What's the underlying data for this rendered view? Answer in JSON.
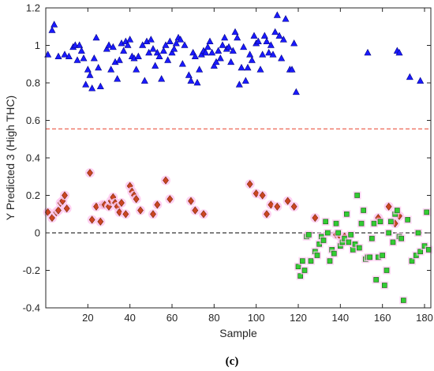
{
  "chart_data": {
    "type": "scatter",
    "panel_label": "(c)",
    "xlabel": "Sample",
    "ylabel": "Y Predicted 3 (High THC)",
    "xlim": [
      0,
      183
    ],
    "ylim": [
      -0.4,
      1.2
    ],
    "xticks": [
      20,
      40,
      60,
      80,
      100,
      120,
      140,
      160,
      180
    ],
    "yticks": [
      -0.4,
      -0.2,
      0,
      0.2,
      0.4,
      0.6,
      0.8,
      1,
      1.2
    ],
    "grid": false,
    "reference_lines": [
      {
        "y": 0.555,
        "color": "#e8402a",
        "style": "dashed"
      },
      {
        "y": 0,
        "color": "#000000",
        "style": "dashed"
      }
    ],
    "series": [
      {
        "marker": "triangle",
        "color": "#1a1aff",
        "edge": "#000080",
        "points": [
          [
            1,
            0.95
          ],
          [
            3,
            1.08
          ],
          [
            4,
            1.11
          ],
          [
            6,
            0.94
          ],
          [
            9,
            0.95
          ],
          [
            11,
            0.94
          ],
          [
            13,
            0.99
          ],
          [
            14,
            1.0
          ],
          [
            15,
            0.92
          ],
          [
            16,
            1.0
          ],
          [
            17,
            0.97
          ],
          [
            18,
            0.93
          ],
          [
            19,
            0.79
          ],
          [
            20,
            0.87
          ],
          [
            21,
            0.84
          ],
          [
            22,
            0.77
          ],
          [
            23,
            0.93
          ],
          [
            24,
            1.04
          ],
          [
            25,
            0.88
          ],
          [
            26,
            0.78
          ],
          [
            29,
            0.98
          ],
          [
            30,
            1.0
          ],
          [
            31,
            0.87
          ],
          [
            32,
            0.99
          ],
          [
            33,
            0.91
          ],
          [
            34,
            0.82
          ],
          [
            35,
            0.92
          ],
          [
            36,
            1.01
          ],
          [
            37,
            0.97
          ],
          [
            38,
            1.02
          ],
          [
            39,
            1.0
          ],
          [
            40,
            1.03
          ],
          [
            41,
            0.94
          ],
          [
            42,
            0.93
          ],
          [
            43,
            0.87
          ],
          [
            44,
            0.94
          ],
          [
            46,
            1.0
          ],
          [
            47,
            0.81
          ],
          [
            48,
            1.02
          ],
          [
            49,
            0.96
          ],
          [
            50,
            1.03
          ],
          [
            51,
            0.98
          ],
          [
            52,
            0.89
          ],
          [
            53,
            0.96
          ],
          [
            54,
            0.94
          ],
          [
            55,
            0.82
          ],
          [
            56,
            0.97
          ],
          [
            57,
            1.0
          ],
          [
            58,
            0.92
          ],
          [
            59,
            1.02
          ],
          [
            60,
            0.96
          ],
          [
            61,
            0.98
          ],
          [
            62,
            1.01
          ],
          [
            63,
            1.04
          ],
          [
            64,
            1.03
          ],
          [
            65,
            0.9
          ],
          [
            66,
            1.0
          ],
          [
            68,
            0.84
          ],
          [
            69,
            0.81
          ],
          [
            70,
            0.96
          ],
          [
            71,
            0.94
          ],
          [
            72,
            0.8
          ],
          [
            73,
            0.87
          ],
          [
            74,
            0.95
          ],
          [
            75,
            0.97
          ],
          [
            76,
            0.96
          ],
          [
            77,
            0.99
          ],
          [
            78,
            1.02
          ],
          [
            79,
            0.96
          ],
          [
            80,
            0.89
          ],
          [
            81,
            0.91
          ],
          [
            82,
            0.97
          ],
          [
            83,
            0.93
          ],
          [
            84,
            1.0
          ],
          [
            85,
            1.04
          ],
          [
            86,
            0.98
          ],
          [
            87,
            0.99
          ],
          [
            88,
            0.91
          ],
          [
            89,
            0.97
          ],
          [
            90,
            1.07
          ],
          [
            91,
            1.04
          ],
          [
            92,
            0.79
          ],
          [
            93,
            0.88
          ],
          [
            94,
            0.99
          ],
          [
            95,
            0.81
          ],
          [
            96,
            0.88
          ],
          [
            97,
            0.95
          ],
          [
            98,
            0.92
          ],
          [
            99,
            1.05
          ],
          [
            100,
            1.01
          ],
          [
            101,
            1.02
          ],
          [
            102,
            0.87
          ],
          [
            103,
            0.95
          ],
          [
            104,
            1.05
          ],
          [
            105,
            1.02
          ],
          [
            106,
            0.96
          ],
          [
            107,
            1.0
          ],
          [
            108,
            0.95
          ],
          [
            109,
            1.07
          ],
          [
            110,
            1.16
          ],
          [
            111,
            1.05
          ],
          [
            112,
            0.93
          ],
          [
            113,
            1.03
          ],
          [
            114,
            1.14
          ],
          [
            116,
            0.87
          ],
          [
            117,
            0.87
          ],
          [
            118,
            1.01
          ],
          [
            119,
            0.75
          ],
          [
            153,
            0.96
          ],
          [
            167,
            0.97
          ],
          [
            168,
            0.96
          ],
          [
            173,
            0.83
          ],
          [
            178,
            0.81
          ]
        ]
      },
      {
        "marker": "diamond",
        "color": "#cc4422",
        "edge": "#6b2a00",
        "halo": "#ffc8ef",
        "points": [
          [
            1,
            0.11
          ],
          [
            3,
            0.08
          ],
          [
            5,
            0.11
          ],
          [
            6,
            0.12
          ],
          [
            7,
            0.16
          ],
          [
            8,
            0.17
          ],
          [
            9,
            0.2
          ],
          [
            10,
            0.13
          ],
          [
            21,
            0.32
          ],
          [
            22,
            0.07
          ],
          [
            24,
            0.14
          ],
          [
            26,
            0.06
          ],
          [
            27,
            0.15
          ],
          [
            28,
            0.15
          ],
          [
            30,
            0.14
          ],
          [
            31,
            0.17
          ],
          [
            32,
            0.19
          ],
          [
            33,
            0.16
          ],
          [
            34,
            0.14
          ],
          [
            35,
            0.11
          ],
          [
            36,
            0.16
          ],
          [
            38,
            0.1
          ],
          [
            40,
            0.25
          ],
          [
            41,
            0.22
          ],
          [
            42,
            0.2
          ],
          [
            43,
            0.18
          ],
          [
            45,
            0.12
          ],
          [
            51,
            0.1
          ],
          [
            53,
            0.15
          ],
          [
            57,
            0.28
          ],
          [
            59,
            0.18
          ],
          [
            69,
            0.17
          ],
          [
            71,
            0.12
          ],
          [
            75,
            0.1
          ],
          [
            97,
            0.26
          ],
          [
            100,
            0.21
          ],
          [
            103,
            0.2
          ],
          [
            105,
            0.1
          ],
          [
            107,
            0.15
          ],
          [
            110,
            0.14
          ],
          [
            115,
            0.17
          ],
          [
            118,
            0.14
          ],
          [
            128,
            0.08
          ],
          [
            138,
            -0.01
          ],
          [
            140,
            -0.02
          ],
          [
            141,
            -0.05
          ],
          [
            142,
            -0.02
          ],
          [
            158,
            0.08
          ],
          [
            163,
            0.14
          ],
          [
            166,
            0.05
          ],
          [
            168,
            0.09
          ]
        ]
      },
      {
        "marker": "square",
        "color": "#33cc33",
        "edge": "#1a5e1a",
        "halo": "#ffc8ef",
        "points": [
          [
            120,
            -0.18
          ],
          [
            121,
            -0.23
          ],
          [
            122,
            -0.15
          ],
          [
            123,
            -0.2
          ],
          [
            124,
            -0.02
          ],
          [
            125,
            -0.01
          ],
          [
            126,
            -0.15
          ],
          [
            128,
            -0.1
          ],
          [
            129,
            -0.12
          ],
          [
            130,
            -0.06
          ],
          [
            131,
            -0.02
          ],
          [
            132,
            -0.04
          ],
          [
            133,
            0.06
          ],
          [
            134,
            0.0
          ],
          [
            135,
            -0.15
          ],
          [
            136,
            -0.09
          ],
          [
            137,
            -0.11
          ],
          [
            138,
            0.05
          ],
          [
            139,
            0.0
          ],
          [
            140,
            -0.07
          ],
          [
            141,
            -0.05
          ],
          [
            142,
            -0.03
          ],
          [
            143,
            0.1
          ],
          [
            144,
            -0.05
          ],
          [
            145,
            -0.01
          ],
          [
            146,
            -0.09
          ],
          [
            147,
            -0.06
          ],
          [
            148,
            0.2
          ],
          [
            149,
            -0.08
          ],
          [
            150,
            0.05
          ],
          [
            151,
            0.12
          ],
          [
            152,
            -0.14
          ],
          [
            153,
            -0.13
          ],
          [
            154,
            -0.13
          ],
          [
            155,
            -0.03
          ],
          [
            156,
            0.05
          ],
          [
            157,
            -0.25
          ],
          [
            158,
            -0.13
          ],
          [
            159,
            0.06
          ],
          [
            160,
            -0.12
          ],
          [
            161,
            -0.28
          ],
          [
            162,
            -0.2
          ],
          [
            163,
            0.0
          ],
          [
            164,
            0.06
          ],
          [
            165,
            -0.05
          ],
          [
            166,
            0.1
          ],
          [
            167,
            0.12
          ],
          [
            168,
            -0.02
          ],
          [
            169,
            -0.03
          ],
          [
            170,
            -0.36
          ],
          [
            172,
            0.07
          ],
          [
            174,
            -0.15
          ],
          [
            176,
            -0.12
          ],
          [
            177,
            0.0
          ],
          [
            178,
            -0.1
          ],
          [
            180,
            -0.07
          ],
          [
            181,
            0.11
          ],
          [
            182,
            -0.09
          ]
        ]
      }
    ]
  }
}
